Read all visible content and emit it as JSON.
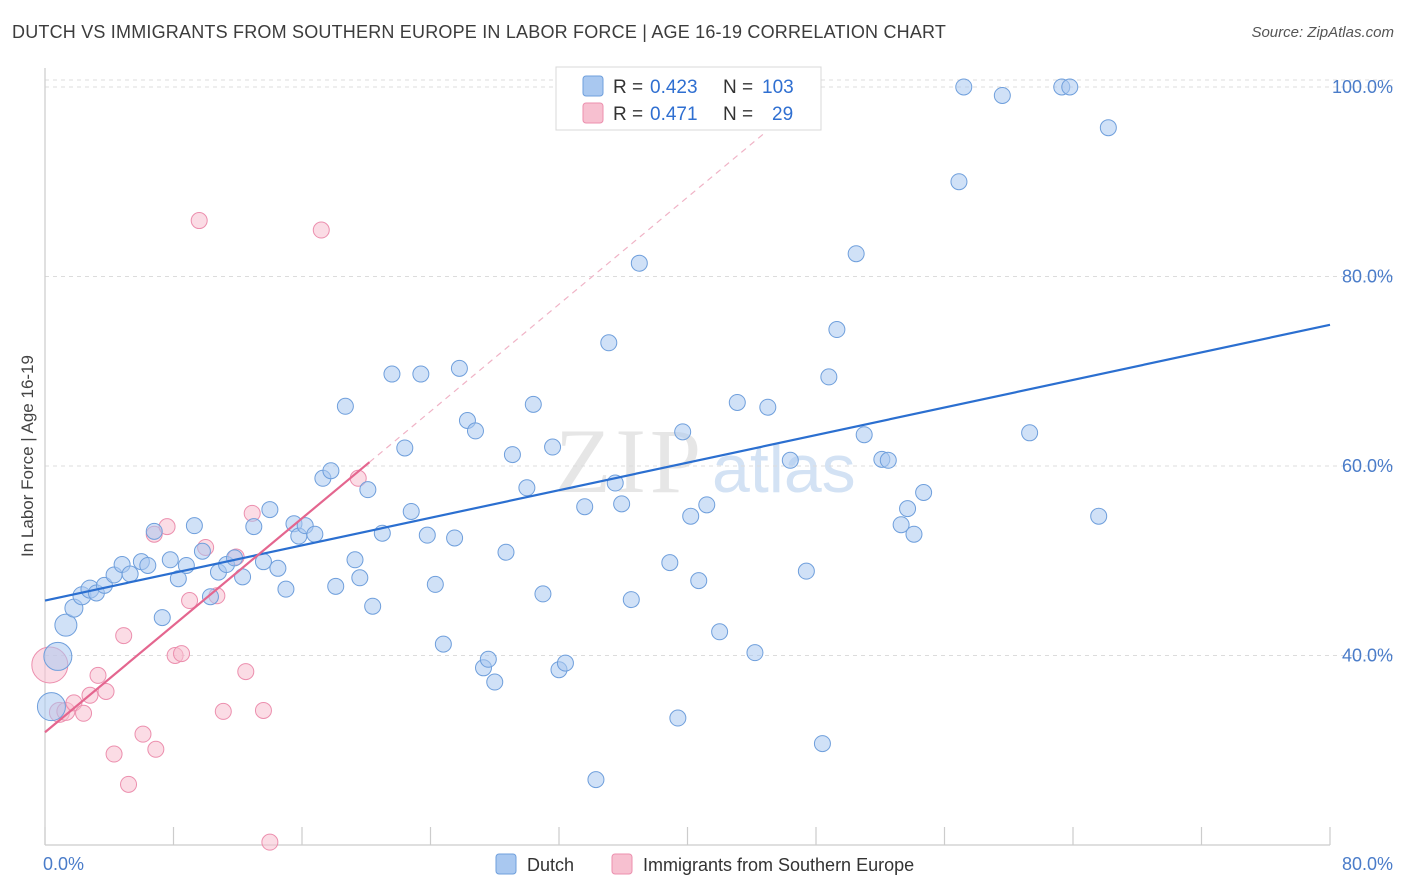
{
  "title": "DUTCH VS IMMIGRANTS FROM SOUTHERN EUROPE IN LABOR FORCE | AGE 16-19 CORRELATION CHART",
  "source": "Source: ZipAtlas.com",
  "watermark": {
    "zip": "ZIP",
    "atlas": "atlas"
  },
  "colors": {
    "dutch_fill": "#a9c8f0",
    "dutch_stroke": "#6f9fdc",
    "dutch_line": "#2b6fd0",
    "imm_fill": "#f7c0d0",
    "imm_stroke": "#ec8fae",
    "imm_line": "#e4668f",
    "axis_label": "#4a7cc9",
    "grid": "#dcdcdc"
  },
  "legend": {
    "rows": [
      {
        "r_label": "R =",
        "r_value": "0.423",
        "n_label": "N =",
        "n_value": "103"
      },
      {
        "r_label": "R =",
        "r_value": "0.471",
        "n_label": "N =",
        "n_value": "29"
      }
    ]
  },
  "bottom_legend": [
    "Dutch",
    "Immigrants from Southern Europe"
  ],
  "chart_data": {
    "type": "scatter",
    "xlabel": "",
    "ylabel": "In Labor Force | Age 16-19",
    "xlim": [
      0,
      80
    ],
    "ylim": [
      20,
      102
    ],
    "x_tick_labels": [
      "0.0%",
      "80.0%"
    ],
    "y_ticks": [
      40,
      60,
      80,
      100
    ],
    "y_tick_labels": [
      "40.0%",
      "60.0%",
      "80.0%",
      "100.0%"
    ],
    "series": [
      {
        "name": "Dutch",
        "trendline": {
          "x": [
            0,
            80
          ],
          "y": [
            45.8,
            74.9
          ],
          "style": "solid"
        },
        "points": [
          [
            0.4,
            34.6,
            14
          ],
          [
            0.8,
            39.9,
            14
          ],
          [
            1.3,
            43.2,
            11
          ],
          [
            1.8,
            45.0,
            9
          ],
          [
            2.3,
            46.3,
            9
          ],
          [
            2.8,
            47.0,
            9
          ],
          [
            3.2,
            46.6,
            8
          ],
          [
            3.7,
            47.4,
            8
          ],
          [
            4.3,
            48.5,
            8
          ],
          [
            4.8,
            49.6,
            8
          ],
          [
            5.3,
            48.6,
            8
          ],
          [
            6.0,
            49.9,
            8
          ],
          [
            6.4,
            49.5,
            8
          ],
          [
            6.8,
            53.1,
            8
          ],
          [
            7.3,
            44.0,
            8
          ],
          [
            7.8,
            50.1,
            8
          ],
          [
            8.3,
            48.1,
            8
          ],
          [
            8.8,
            49.5,
            8
          ],
          [
            9.3,
            53.7,
            8
          ],
          [
            9.8,
            51.0,
            8
          ],
          [
            10.3,
            46.2,
            8
          ],
          [
            10.8,
            48.8,
            8
          ],
          [
            11.3,
            49.6,
            8
          ],
          [
            11.8,
            50.3,
            8
          ],
          [
            12.3,
            48.3,
            8
          ],
          [
            13.0,
            53.6,
            8
          ],
          [
            13.6,
            49.9,
            8
          ],
          [
            14.0,
            55.4,
            8
          ],
          [
            14.5,
            49.2,
            8
          ],
          [
            15.0,
            47.0,
            8
          ],
          [
            15.5,
            53.9,
            8
          ],
          [
            15.8,
            52.6,
            8
          ],
          [
            16.2,
            53.7,
            8
          ],
          [
            16.8,
            52.8,
            8
          ],
          [
            17.3,
            58.7,
            8
          ],
          [
            17.8,
            59.5,
            8
          ],
          [
            18.1,
            47.3,
            8
          ],
          [
            18.7,
            66.3,
            8
          ],
          [
            19.3,
            50.1,
            8
          ],
          [
            19.6,
            48.2,
            8
          ],
          [
            20.1,
            57.5,
            8
          ],
          [
            20.4,
            45.2,
            8
          ],
          [
            21.0,
            52.9,
            8
          ],
          [
            21.6,
            69.7,
            8
          ],
          [
            22.4,
            61.9,
            8
          ],
          [
            22.8,
            55.2,
            8
          ],
          [
            23.4,
            69.7,
            8
          ],
          [
            23.8,
            52.7,
            8
          ],
          [
            24.3,
            47.5,
            8
          ],
          [
            24.8,
            41.2,
            8
          ],
          [
            25.5,
            52.4,
            8
          ],
          [
            25.8,
            70.3,
            8
          ],
          [
            26.3,
            64.8,
            8
          ],
          [
            26.8,
            63.7,
            8
          ],
          [
            27.3,
            38.7,
            8
          ],
          [
            27.6,
            39.6,
            8
          ],
          [
            28.0,
            37.2,
            8
          ],
          [
            28.7,
            50.9,
            8
          ],
          [
            29.1,
            61.2,
            8
          ],
          [
            30.0,
            57.7,
            8
          ],
          [
            30.4,
            66.5,
            8
          ],
          [
            31.0,
            46.5,
            8
          ],
          [
            31.6,
            62.0,
            8
          ],
          [
            32.0,
            38.5,
            8
          ],
          [
            32.4,
            39.2,
            8
          ],
          [
            33.6,
            55.7,
            8
          ],
          [
            34.3,
            26.9,
            8
          ],
          [
            35.1,
            73.0,
            8
          ],
          [
            35.5,
            58.2,
            8
          ],
          [
            35.9,
            56.0,
            8
          ],
          [
            36.5,
            45.9,
            8
          ],
          [
            37.0,
            81.4,
            8
          ],
          [
            38.9,
            49.8,
            8
          ],
          [
            39.4,
            33.4,
            8
          ],
          [
            39.7,
            63.6,
            8
          ],
          [
            40.2,
            54.7,
            8
          ],
          [
            40.7,
            47.9,
            8
          ],
          [
            41.2,
            55.9,
            8
          ],
          [
            42.0,
            42.5,
            8
          ],
          [
            43.1,
            66.7,
            8
          ],
          [
            44.2,
            40.3,
            8
          ],
          [
            45.0,
            66.2,
            8
          ],
          [
            46.4,
            60.6,
            8
          ],
          [
            47.4,
            48.9,
            8
          ],
          [
            48.4,
            30.7,
            8
          ],
          [
            48.8,
            69.4,
            8
          ],
          [
            49.3,
            74.4,
            8
          ],
          [
            50.5,
            82.4,
            8
          ],
          [
            51.0,
            63.3,
            8
          ],
          [
            52.1,
            60.7,
            8
          ],
          [
            52.5,
            60.6,
            8
          ],
          [
            53.3,
            53.8,
            8
          ],
          [
            53.7,
            55.5,
            8
          ],
          [
            54.1,
            52.8,
            8
          ],
          [
            54.7,
            57.2,
            8
          ],
          [
            56.9,
            90.0,
            8
          ],
          [
            57.2,
            100.0,
            8
          ],
          [
            59.6,
            99.1,
            8
          ],
          [
            61.3,
            63.5,
            8
          ],
          [
            63.3,
            100.0,
            8
          ],
          [
            63.8,
            100.0,
            8
          ],
          [
            66.2,
            95.7,
            8
          ],
          [
            65.6,
            54.7,
            8
          ]
        ]
      },
      {
        "name": "Immigrants from Southern Europe",
        "trendline": {
          "x": [
            0,
            20.2
          ],
          "y": [
            31.9,
            60.4
          ],
          "style": "solid",
          "extension": {
            "x": [
              20.2,
              44.7
            ],
            "y": [
              60.4,
              95.0
            ],
            "style": "dashed"
          }
        },
        "points": [
          [
            0.3,
            39.0,
            18
          ],
          [
            0.9,
            34.0,
            10
          ],
          [
            1.3,
            34.1,
            9
          ],
          [
            1.8,
            35.0,
            8
          ],
          [
            2.4,
            33.9,
            8
          ],
          [
            2.8,
            35.8,
            8
          ],
          [
            3.3,
            37.9,
            8
          ],
          [
            3.8,
            36.2,
            8
          ],
          [
            4.3,
            29.6,
            8
          ],
          [
            4.9,
            42.1,
            8
          ],
          [
            5.2,
            26.4,
            8
          ],
          [
            6.1,
            31.7,
            8
          ],
          [
            6.8,
            52.8,
            8
          ],
          [
            6.9,
            30.1,
            8
          ],
          [
            7.6,
            53.6,
            8
          ],
          [
            8.1,
            40.0,
            8
          ],
          [
            8.5,
            40.2,
            8
          ],
          [
            9.0,
            45.8,
            8
          ],
          [
            9.6,
            85.9,
            8
          ],
          [
            10.0,
            51.4,
            8
          ],
          [
            10.7,
            46.3,
            8
          ],
          [
            11.1,
            34.1,
            8
          ],
          [
            11.9,
            50.4,
            8
          ],
          [
            12.5,
            38.3,
            8
          ],
          [
            12.9,
            55.0,
            8
          ],
          [
            13.6,
            34.2,
            8
          ],
          [
            14.0,
            20.3,
            8
          ],
          [
            17.2,
            84.9,
            8
          ],
          [
            19.5,
            58.7,
            8
          ]
        ]
      }
    ]
  }
}
